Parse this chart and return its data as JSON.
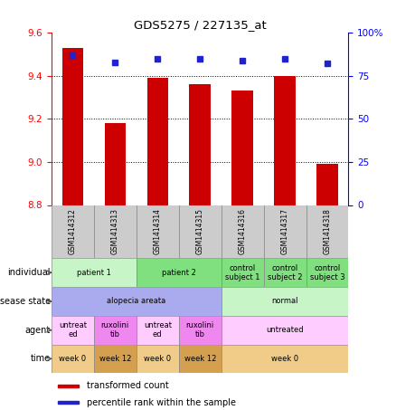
{
  "title": "GDS5275 / 227135_at",
  "samples": [
    "GSM1414312",
    "GSM1414313",
    "GSM1414314",
    "GSM1414315",
    "GSM1414316",
    "GSM1414317",
    "GSM1414318"
  ],
  "bar_values": [
    9.53,
    9.18,
    9.39,
    9.36,
    9.33,
    9.4,
    8.99
  ],
  "percentile_values": [
    87,
    83,
    85,
    85,
    84,
    85,
    82
  ],
  "ylim_left": [
    8.8,
    9.6
  ],
  "ylim_right": [
    0,
    100
  ],
  "yticks_left": [
    8.8,
    9.0,
    9.2,
    9.4,
    9.6
  ],
  "yticks_right": [
    0,
    25,
    50,
    75,
    100
  ],
  "ytick_labels_right": [
    "0",
    "25",
    "50",
    "75",
    "100%"
  ],
  "bar_color": "#cc0000",
  "dot_color": "#2222cc",
  "bar_width": 0.5,
  "grid_color": "#000000",
  "sample_box_color": "#cccccc",
  "rows": [
    {
      "key": "individual",
      "label": "individual",
      "cells": [
        {
          "text": "patient 1",
          "span": [
            0,
            2
          ],
          "color": "#c8f5c8"
        },
        {
          "text": "patient 2",
          "span": [
            2,
            4
          ],
          "color": "#80e080"
        },
        {
          "text": "control\nsubject 1",
          "span": [
            4,
            5
          ],
          "color": "#80e080"
        },
        {
          "text": "control\nsubject 2",
          "span": [
            5,
            6
          ],
          "color": "#80e080"
        },
        {
          "text": "control\nsubject 3",
          "span": [
            6,
            7
          ],
          "color": "#80e080"
        }
      ]
    },
    {
      "key": "disease_state",
      "label": "disease state",
      "cells": [
        {
          "text": "alopecia areata",
          "span": [
            0,
            4
          ],
          "color": "#aaaaee"
        },
        {
          "text": "normal",
          "span": [
            4,
            7
          ],
          "color": "#c8f5c8"
        }
      ]
    },
    {
      "key": "agent",
      "label": "agent",
      "cells": [
        {
          "text": "untreat\ned",
          "span": [
            0,
            1
          ],
          "color": "#ffccff"
        },
        {
          "text": "ruxolini\ntib",
          "span": [
            1,
            2
          ],
          "color": "#ee88ee"
        },
        {
          "text": "untreat\ned",
          "span": [
            2,
            3
          ],
          "color": "#ffccff"
        },
        {
          "text": "ruxolini\ntib",
          "span": [
            3,
            4
          ],
          "color": "#ee88ee"
        },
        {
          "text": "untreated",
          "span": [
            4,
            7
          ],
          "color": "#ffccff"
        }
      ]
    },
    {
      "key": "time",
      "label": "time",
      "cells": [
        {
          "text": "week 0",
          "span": [
            0,
            1
          ],
          "color": "#f0cc88"
        },
        {
          "text": "week 12",
          "span": [
            1,
            2
          ],
          "color": "#d4a050"
        },
        {
          "text": "week 0",
          "span": [
            2,
            3
          ],
          "color": "#f0cc88"
        },
        {
          "text": "week 12",
          "span": [
            3,
            4
          ],
          "color": "#d4a050"
        },
        {
          "text": "week 0",
          "span": [
            4,
            7
          ],
          "color": "#f0cc88"
        }
      ]
    }
  ]
}
